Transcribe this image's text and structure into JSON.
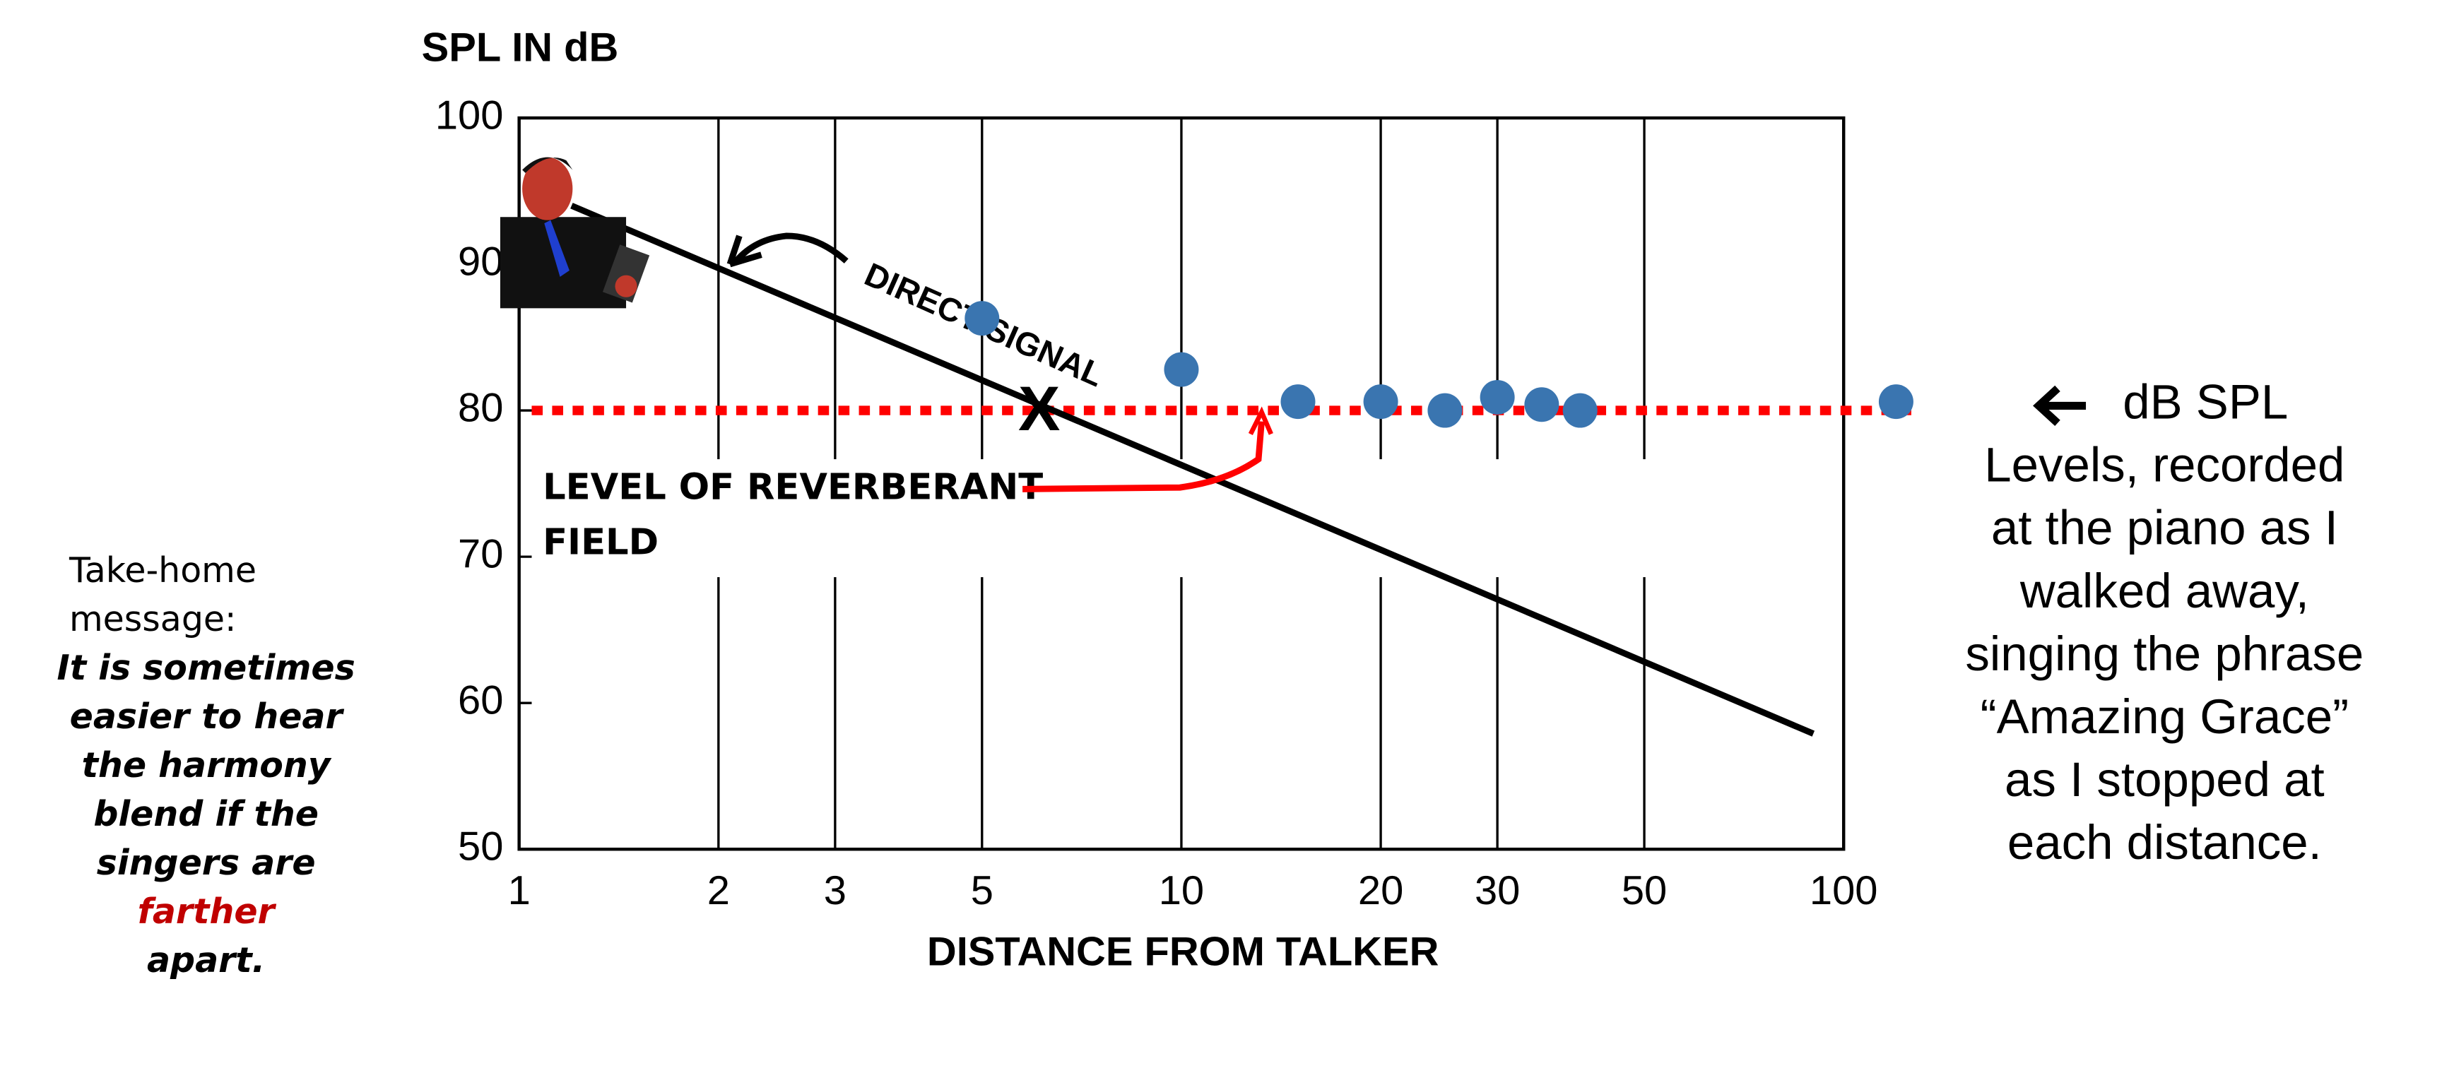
{
  "chart_data": {
    "type": "scatter",
    "y_label": "SPL IN dB",
    "x_label": "DISTANCE FROM TALKER",
    "log_x": true,
    "grid": "x",
    "xlim": [
      1,
      100
    ],
    "ylim": [
      50,
      100
    ],
    "xticks": [
      1,
      2,
      3,
      5,
      10,
      20,
      30,
      50,
      100
    ],
    "yticks": [
      50,
      60,
      70,
      80,
      90,
      100
    ],
    "color": "#3a75b0",
    "x": [
      5,
      10,
      15,
      20,
      25,
      30,
      35,
      40,
      120
    ],
    "values": [
      86.3,
      82.8,
      80.6,
      80.6,
      80.0,
      80.9,
      80.4,
      80.0,
      80.6
    ],
    "direct_signal": {
      "label": "DIRECT SIGNAL",
      "color": "#000000",
      "x": [
        1.2,
        90
      ],
      "values": [
        94,
        57.9
      ]
    },
    "reverberant_level": {
      "label": [
        "LEVEL OF REVERBERANT",
        "FIELD"
      ],
      "color": "#ff0000",
      "value": 80
    },
    "crossing_marker": {
      "label": "X",
      "x": 6.1,
      "y": 80
    },
    "left_note": {
      "intro": [
        "Take-home",
        "message:"
      ],
      "lines": [
        {
          "text": "It is sometimes",
          "color": "#000000"
        },
        {
          "text": "easier to hear",
          "color": "#000000"
        },
        {
          "text": "the harmony",
          "color": "#000000"
        },
        {
          "text": "blend if the",
          "color": "#000000"
        },
        {
          "text": "singers are",
          "color": "#000000"
        },
        {
          "text": "farther",
          "color": "#c00000"
        },
        {
          "text": "apart.",
          "color": "#000000"
        }
      ]
    },
    "right_note": [
      "dB SPL",
      "Levels,  recorded",
      "at the piano as I",
      "walked away,",
      "singing the phrase",
      "“Amazing Grace”",
      "as I stopped at",
      "each distance."
    ]
  }
}
